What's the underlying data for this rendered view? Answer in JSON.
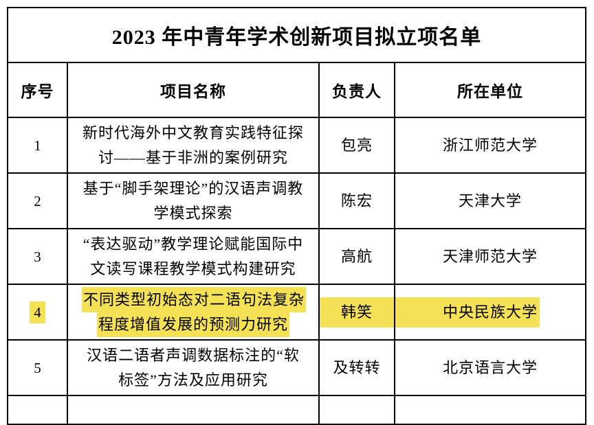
{
  "page": {
    "background_color": "#ffffff",
    "highlight_color": "#F5E155",
    "border_color": "#000000"
  },
  "table": {
    "title": "2023 年中青年学术创新项目拟立项名单",
    "headers": [
      "序号",
      "项目名称",
      "负责人",
      "所在单位"
    ],
    "rows": [
      {
        "no": "1",
        "project": "新时代海外中文教育实践特征探讨——基于非洲的案例研究",
        "leader": "包亮",
        "unit": "浙江师范大学",
        "highlighted": false
      },
      {
        "no": "2",
        "project": "基于“脚手架理论”的汉语声调教学模式探索",
        "leader": "陈宏",
        "unit": "天津大学",
        "highlighted": false
      },
      {
        "no": "3",
        "project": "“表达驱动”教学理论赋能国际中文读写课程教学模式构建研究",
        "leader": "高航",
        "unit": "天津师范大学",
        "highlighted": false
      },
      {
        "no": "4",
        "project": "不同类型初始态对二语句法复杂程度增值发展的预测力研究",
        "leader": "韩笑",
        "unit": "中央民族大学",
        "highlighted": true
      },
      {
        "no": "5",
        "project": "汉语二语者声调数据标注的“软标签”方法及应用研究",
        "leader": "及转转",
        "unit": "北京语言大学",
        "highlighted": false
      }
    ]
  }
}
